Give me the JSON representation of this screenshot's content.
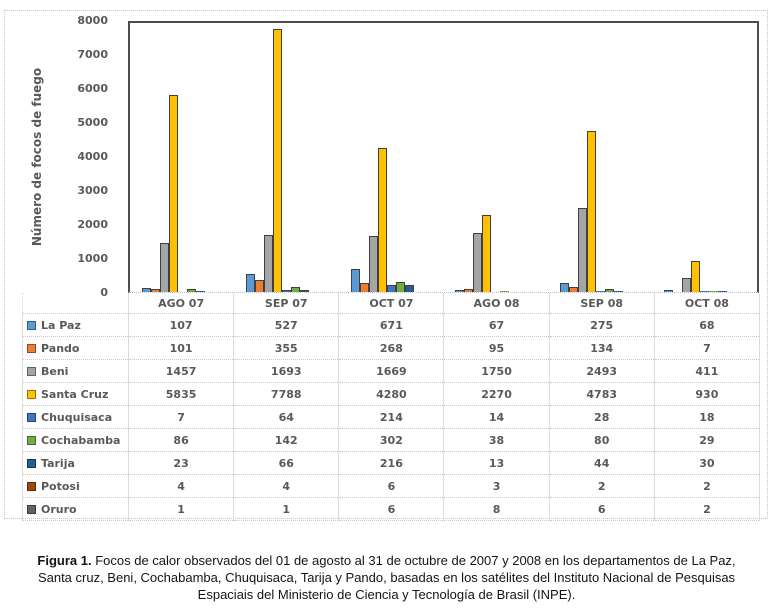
{
  "chart_data": {
    "type": "bar",
    "title": "",
    "xlabel": "",
    "ylabel": "Número de focos de fuego",
    "ylim": [
      0,
      8000
    ],
    "y_ticks": [
      "8000",
      "7000",
      "6000",
      "5000",
      "4000",
      "3000",
      "2000",
      "1000",
      "0"
    ],
    "grid": false,
    "legend_position": "data-table-left",
    "categories": [
      "AGO 07",
      "SEP 07",
      "OCT 07",
      "AGO 08",
      "SEP 08",
      "OCT 08"
    ],
    "series": [
      {
        "name": "La Paz",
        "color": "#5B9BD5",
        "values": [
          107,
          527,
          671,
          67,
          275,
          68
        ]
      },
      {
        "name": "Pando",
        "color": "#ED7D31",
        "values": [
          101,
          355,
          268,
          95,
          134,
          7
        ]
      },
      {
        "name": "Beni",
        "color": "#A5A5A5",
        "values": [
          1457,
          1693,
          1669,
          1750,
          2493,
          411
        ]
      },
      {
        "name": "Santa Cruz",
        "color": "#FFC000",
        "values": [
          5835,
          7788,
          4280,
          2270,
          4783,
          930
        ]
      },
      {
        "name": "Chuquisaca",
        "color": "#4472C4",
        "values": [
          7,
          64,
          214,
          14,
          28,
          18
        ]
      },
      {
        "name": "Cochabamba",
        "color": "#70AD47",
        "values": [
          86,
          142,
          302,
          38,
          80,
          29
        ]
      },
      {
        "name": "Tarija",
        "color": "#255E91",
        "values": [
          23,
          66,
          216,
          13,
          44,
          30
        ]
      },
      {
        "name": "Potosi",
        "color": "#9E480E",
        "values": [
          4,
          4,
          6,
          3,
          2,
          2
        ]
      },
      {
        "name": "Oruro",
        "color": "#636363",
        "values": [
          1,
          1,
          6,
          8,
          6,
          2
        ]
      }
    ]
  },
  "caption": {
    "label": "Figura 1.",
    "line1": " Focos de calor observados del 01 de agosto al 31 de octubre de 2007 y 2008 en los departamentos de La Paz,",
    "line2": "Santa cruz, Beni, Cochabamba, Chuquisaca, Tarija y Pando, basadas en los satélites del Instituto Nacional de Pesquisas",
    "line3": "Espaciais del Ministerio de Ciencia y Tecnología de Brasil (INPE)."
  }
}
